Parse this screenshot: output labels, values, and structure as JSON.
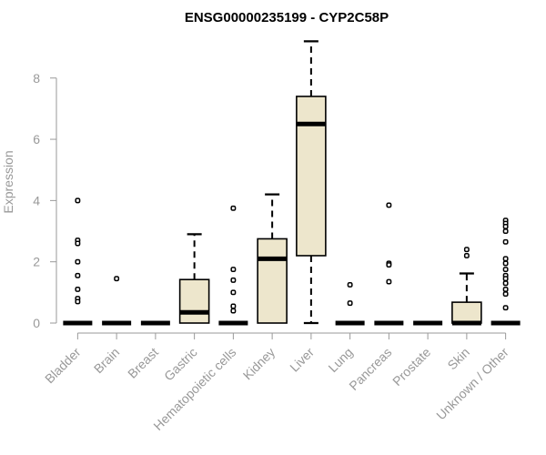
{
  "chart_data": {
    "type": "boxplot",
    "title": "ENSG00000235199 - CYP2C58P",
    "ylabel": "Expression",
    "xlabel": "",
    "ylim": [
      0,
      9.3
    ],
    "yticks": [
      0,
      2,
      4,
      6,
      8
    ],
    "grid": false,
    "legend": "none",
    "colors": {
      "box_fill": "#ede6cc",
      "stroke": "#000000",
      "axis_text": "#999999"
    },
    "categories": [
      "Bladder",
      "Brain",
      "Breast",
      "Gastric",
      "Hematopoietic cells",
      "Kidney",
      "Liver",
      "Lung",
      "Pancreas",
      "Prostate",
      "Skin",
      "Unknown / Other"
    ],
    "boxes": [
      {
        "category": "Bladder",
        "min": 0,
        "q1": 0,
        "median": 0,
        "q3": 0,
        "max": 0,
        "outliers": [
          4.0,
          2.7,
          2.6,
          2.0,
          1.55,
          1.1,
          0.8,
          0.7
        ]
      },
      {
        "category": "Brain",
        "min": 0,
        "q1": 0,
        "median": 0,
        "q3": 0,
        "max": 0,
        "outliers": [
          1.45
        ]
      },
      {
        "category": "Breast",
        "min": 0,
        "q1": 0,
        "median": 0,
        "q3": 0,
        "max": 0,
        "outliers": []
      },
      {
        "category": "Gastric",
        "min": 0,
        "q1": 0,
        "median": 0.35,
        "q3": 1.42,
        "max": 2.9,
        "outliers": []
      },
      {
        "category": "Hematopoietic cells",
        "min": 0,
        "q1": 0,
        "median": 0,
        "q3": 0,
        "max": 0,
        "outliers": [
          3.75,
          1.75,
          1.4,
          1.0,
          0.55,
          0.4
        ]
      },
      {
        "category": "Kidney",
        "min": 0,
        "q1": 0,
        "median": 2.1,
        "q3": 2.75,
        "max": 4.2,
        "outliers": []
      },
      {
        "category": "Liver",
        "min": 0,
        "q1": 2.2,
        "median": 6.5,
        "q3": 7.4,
        "max": 9.2,
        "outliers": []
      },
      {
        "category": "Lung",
        "min": 0,
        "q1": 0,
        "median": 0,
        "q3": 0,
        "max": 0,
        "outliers": [
          1.25,
          0.65
        ]
      },
      {
        "category": "Pancreas",
        "min": 0,
        "q1": 0,
        "median": 0,
        "q3": 0,
        "max": 0,
        "outliers": [
          3.85,
          1.95,
          1.9,
          1.35
        ]
      },
      {
        "category": "Prostate",
        "min": 0,
        "q1": 0,
        "median": 0,
        "q3": 0,
        "max": 0,
        "outliers": []
      },
      {
        "category": "Skin",
        "min": 0,
        "q1": 0,
        "median": 0,
        "q3": 0.68,
        "max": 1.62,
        "outliers": [
          2.4,
          2.2
        ]
      },
      {
        "category": "Unknown / Other",
        "min": 0,
        "q1": 0,
        "median": 0,
        "q3": 0,
        "max": 0,
        "outliers": [
          3.35,
          3.25,
          3.15,
          3.0,
          2.65,
          2.1,
          1.95,
          1.75,
          1.55,
          1.45,
          1.3,
          1.1,
          0.95,
          0.5
        ]
      }
    ]
  }
}
